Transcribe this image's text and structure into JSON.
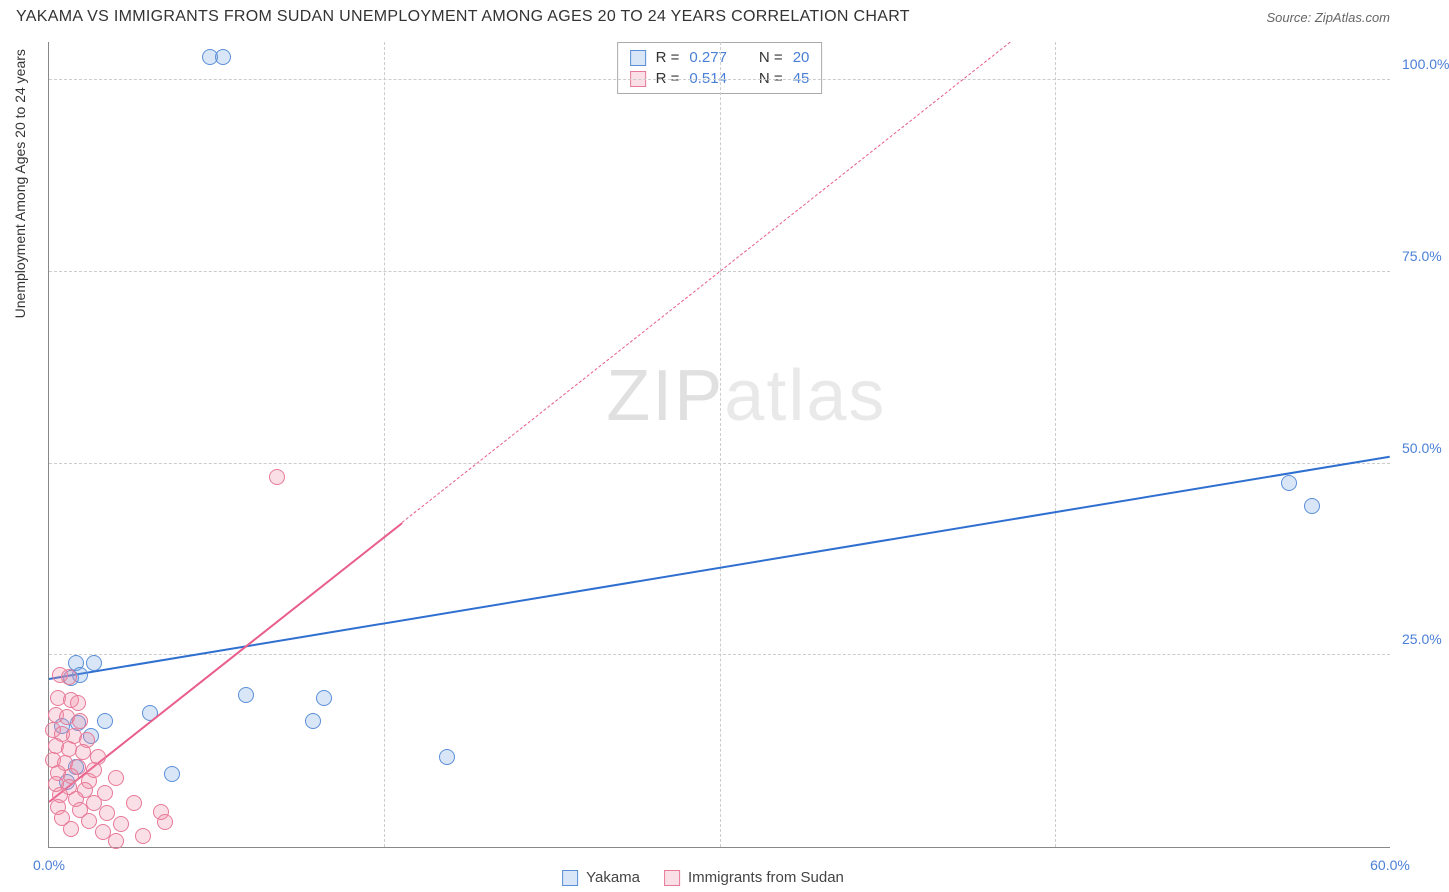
{
  "header": {
    "title": "YAKAMA VS IMMIGRANTS FROM SUDAN UNEMPLOYMENT AMONG AGES 20 TO 24 YEARS CORRELATION CHART",
    "source_label": "Source: ZipAtlas.com"
  },
  "chart": {
    "type": "scatter",
    "watermark_prefix": "ZIP",
    "watermark_suffix": "atlas",
    "y_axis_label": "Unemployment Among Ages 20 to 24 years",
    "xlim": [
      0,
      60
    ],
    "ylim": [
      0,
      105
    ],
    "x_ticks": [
      {
        "pos": 0,
        "label": "0.0%"
      },
      {
        "pos": 60,
        "label": "60.0%"
      }
    ],
    "y_ticks": [
      {
        "pos": 25,
        "label": "25.0%"
      },
      {
        "pos": 50,
        "label": "50.0%"
      },
      {
        "pos": 75,
        "label": "75.0%"
      },
      {
        "pos": 100,
        "label": "100.0%"
      }
    ],
    "x_gridlines": [
      15,
      30,
      45
    ],
    "y_gridlines": [
      25,
      50,
      75,
      100
    ],
    "background_color": "#ffffff",
    "grid_color": "#cccccc",
    "axis_color": "#888888",
    "tick_label_color": "#4a7fd6",
    "label_fontsize": 14,
    "title_fontsize": 16,
    "marker_radius": 8,
    "marker_stroke_width": 1.5,
    "marker_fill_opacity": 0.25,
    "series": [
      {
        "name": "Yakama",
        "color": "#6699e0",
        "fill": "rgba(120,165,225,0.28)",
        "stroke": "#5a8fd8",
        "R": "0.277",
        "N": "20",
        "trend": {
          "x1": 0,
          "y1": 22,
          "x2": 60,
          "y2": 51,
          "solid_until_x": 60,
          "line_color": "#2f6fd0",
          "line_width": 2
        },
        "points": [
          {
            "x": 7.2,
            "y": 103
          },
          {
            "x": 7.8,
            "y": 103
          },
          {
            "x": 55.5,
            "y": 47.5
          },
          {
            "x": 56.5,
            "y": 44.5
          },
          {
            "x": 1.2,
            "y": 24
          },
          {
            "x": 2.0,
            "y": 24
          },
          {
            "x": 1.0,
            "y": 22
          },
          {
            "x": 1.4,
            "y": 22.5
          },
          {
            "x": 4.5,
            "y": 17.5
          },
          {
            "x": 8.8,
            "y": 19.8
          },
          {
            "x": 12.3,
            "y": 19.5
          },
          {
            "x": 2.5,
            "y": 16.5
          },
          {
            "x": 1.3,
            "y": 16.2
          },
          {
            "x": 11.8,
            "y": 16.4
          },
          {
            "x": 17.8,
            "y": 11.8
          },
          {
            "x": 1.2,
            "y": 10.5
          },
          {
            "x": 5.5,
            "y": 9.5
          },
          {
            "x": 0.8,
            "y": 8.5
          },
          {
            "x": 1.9,
            "y": 14.5
          },
          {
            "x": 0.6,
            "y": 15.8
          }
        ]
      },
      {
        "name": "Immigrants from Sudan",
        "color": "#ef8aa5",
        "fill": "rgba(240,140,165,0.28)",
        "stroke": "#e77a98",
        "R": "0.514",
        "N": "45",
        "trend": {
          "x1": 0,
          "y1": 6,
          "x2": 43,
          "y2": 105,
          "solid_until_x": 15.8,
          "line_color": "#e85d8a",
          "line_width": 2
        },
        "points": [
          {
            "x": 10.2,
            "y": 48.2
          },
          {
            "x": 0.5,
            "y": 22.4
          },
          {
            "x": 0.9,
            "y": 22.2
          },
          {
            "x": 0.4,
            "y": 19.5
          },
          {
            "x": 1.0,
            "y": 19.2
          },
          {
            "x": 1.3,
            "y": 18.8
          },
          {
            "x": 0.3,
            "y": 17.2
          },
          {
            "x": 0.8,
            "y": 17.0
          },
          {
            "x": 1.4,
            "y": 16.5
          },
          {
            "x": 0.2,
            "y": 15.2
          },
          {
            "x": 0.6,
            "y": 14.8
          },
          {
            "x": 1.1,
            "y": 14.5
          },
          {
            "x": 1.7,
            "y": 14.0
          },
          {
            "x": 0.3,
            "y": 13.2
          },
          {
            "x": 0.9,
            "y": 12.8
          },
          {
            "x": 1.5,
            "y": 12.4
          },
          {
            "x": 2.2,
            "y": 11.8
          },
          {
            "x": 0.2,
            "y": 11.4
          },
          {
            "x": 0.7,
            "y": 11.0
          },
          {
            "x": 1.3,
            "y": 10.5
          },
          {
            "x": 2.0,
            "y": 10.0
          },
          {
            "x": 0.4,
            "y": 9.6
          },
          {
            "x": 1.0,
            "y": 9.2
          },
          {
            "x": 1.8,
            "y": 8.6
          },
          {
            "x": 3.0,
            "y": 9.0
          },
          {
            "x": 0.3,
            "y": 8.2
          },
          {
            "x": 0.9,
            "y": 7.8
          },
          {
            "x": 1.6,
            "y": 7.4
          },
          {
            "x": 2.5,
            "y": 7.0
          },
          {
            "x": 0.5,
            "y": 6.8
          },
          {
            "x": 1.2,
            "y": 6.2
          },
          {
            "x": 2.0,
            "y": 5.8
          },
          {
            "x": 3.8,
            "y": 5.8
          },
          {
            "x": 0.4,
            "y": 5.2
          },
          {
            "x": 1.4,
            "y": 4.8
          },
          {
            "x": 2.6,
            "y": 4.4
          },
          {
            "x": 5.0,
            "y": 4.6
          },
          {
            "x": 0.6,
            "y": 3.8
          },
          {
            "x": 1.8,
            "y": 3.4
          },
          {
            "x": 3.2,
            "y": 3.0
          },
          {
            "x": 1.0,
            "y": 2.4
          },
          {
            "x": 2.4,
            "y": 2.0
          },
          {
            "x": 4.2,
            "y": 1.4
          },
          {
            "x": 3.0,
            "y": 0.8
          },
          {
            "x": 5.2,
            "y": 3.2
          }
        ]
      }
    ],
    "legend": {
      "series1_label": "Yakama",
      "series2_label": "Immigrants from Sudan"
    },
    "stats_labels": {
      "R": "R =",
      "N": "N ="
    }
  }
}
